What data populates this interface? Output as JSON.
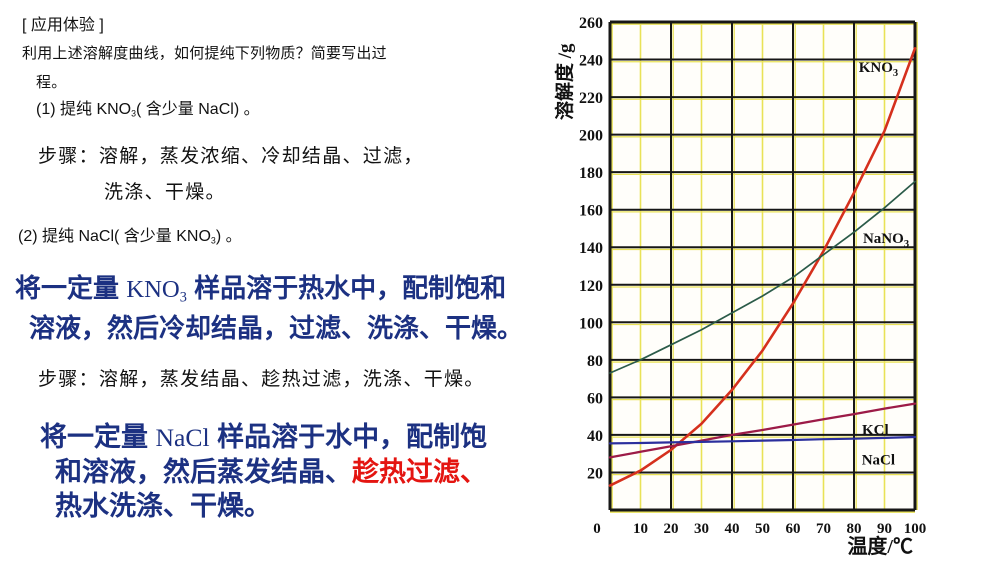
{
  "colors": {
    "blue_text": "#1c3182",
    "red_text": "#e41511",
    "black_text": "#121212"
  },
  "text": {
    "header": "[ 应用体验 ]",
    "q1": "利用上述溶解度曲线，如何提纯下列物质？简要写出过",
    "q2": "程。",
    "item1": [
      {
        "t": "(1) 提纯 "
      },
      {
        "t": "KNO"
      },
      {
        "t": "3",
        "c": "sub"
      },
      {
        "t": "( 含少量 NaCl) 。"
      }
    ],
    "steps1_line1": "步骤：溶解，蒸发浓缩、冷却结晶、过滤，",
    "steps1_line2": "洗涤、干燥。",
    "item2": [
      {
        "t": "(2) 提纯 NaCl( 含少量 "
      },
      {
        "t": "KNO"
      },
      {
        "t": "3",
        "c": "sub"
      },
      {
        "t": ") 。"
      }
    ],
    "ans1_line1": [
      {
        "t": "将一定量 "
      },
      {
        "t": "KNO",
        "c": "latin"
      },
      {
        "t": "3",
        "c": "latin sub"
      },
      {
        "t": " 样品溶于热水中，配制饱和"
      }
    ],
    "ans1_line2": "溶液，然后冷却结晶，过滤、洗涤、干燥。",
    "steps2": "步骤：溶解，蒸发结晶、趁热过滤，洗涤、干燥。",
    "ans2_line1": [
      {
        "t": "将一定量 "
      },
      {
        "t": "NaCl",
        "c": "latin"
      },
      {
        "t": " 样品溶于水中，配制饱"
      }
    ],
    "ans2_line2": [
      {
        "t": "和溶液，然后蒸发结晶、"
      },
      {
        "t": "趁热过滤",
        "c": "red"
      },
      {
        "t": "、",
        "c": "red"
      }
    ],
    "ans2_line3": "热水洗涤、干燥。"
  },
  "chart_data": {
    "type": "line",
    "title": "",
    "xlabel": "温度/℃",
    "ylabel": "溶解度 /g",
    "xlim": [
      0,
      100
    ],
    "ylim": [
      0,
      260
    ],
    "grid": true,
    "x_ticks": [
      0,
      10,
      20,
      30,
      40,
      50,
      60,
      70,
      80,
      90,
      100
    ],
    "y_ticks": [
      20,
      40,
      60,
      80,
      100,
      120,
      140,
      160,
      180,
      200,
      220,
      240,
      260
    ],
    "x_major_grid": [
      0,
      20,
      40,
      60,
      80,
      100
    ],
    "x_minor_grid": [
      10,
      30,
      50,
      70,
      90
    ],
    "x": [
      0,
      10,
      20,
      30,
      40,
      50,
      60,
      70,
      80,
      90,
      100
    ],
    "series": [
      {
        "name": "KNO3",
        "label": "KNO",
        "label_sub": "3",
        "color": "#d5301d",
        "width": 2.6,
        "values": [
          13,
          21,
          32,
          46,
          64,
          85,
          110,
          138,
          169,
          202,
          246
        ],
        "label_pos": {
          "x": 88,
          "y": 236
        }
      },
      {
        "name": "NaNO3",
        "label": "NaNO",
        "label_sub": "3",
        "color": "#2b5b49",
        "width": 1.7,
        "values": [
          73,
          80,
          88,
          96,
          105,
          114,
          124,
          136,
          148,
          161,
          175
        ],
        "label_pos": {
          "x": 90.5,
          "y": 145
        }
      },
      {
        "name": "KCl",
        "label": "KCl",
        "label_sub": "",
        "color": "#9c1b47",
        "width": 2.3,
        "values": [
          28,
          31,
          34,
          37,
          40,
          42.6,
          45.5,
          48.3,
          51.1,
          54,
          56.7
        ],
        "label_pos": {
          "x": 87,
          "y": 43
        }
      },
      {
        "name": "NaCl",
        "label": "NaCl",
        "label_sub": "",
        "color": "#2b2f9d",
        "width": 2.2,
        "values": [
          35.5,
          35.7,
          36,
          36.3,
          36.6,
          37,
          37.3,
          37.7,
          38,
          38.4,
          38.9
        ],
        "label_pos": {
          "x": 88,
          "y": 27
        }
      }
    ],
    "grid_colors": {
      "major": "#171717",
      "minor": "#e9e257",
      "bg": "#fffefa"
    }
  }
}
